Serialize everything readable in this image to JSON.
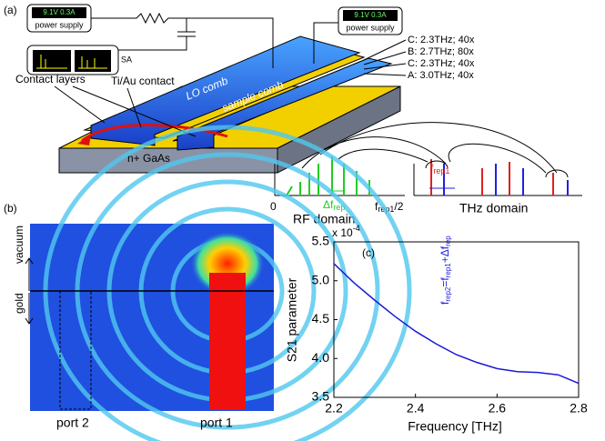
{
  "panel_a": {
    "label": "(a)",
    "supply_left": {
      "display": "9.1V 0.3A",
      "name": "power supply"
    },
    "sa": "SA",
    "supply_right": {
      "display": "9.1V 0.3A",
      "name": "power supply"
    },
    "layers": [
      "C: 2.3THz; 40x",
      "B: 2.7THz; 80x",
      "C: 2.3THz; 40x",
      "A: 3.0THz; 40x"
    ],
    "contact_layers": "Contact layers",
    "contact": "Ti/Au contact",
    "lo_comb": "LO comb",
    "sample_comb": "sample comb",
    "substrate": "n+ GaAs",
    "rf": {
      "zero": "0",
      "delta": "Δf",
      "delta_sub": "rep",
      "half": "f",
      "half_sub": "rep1",
      "half_end": "/2",
      "domain": "RF domain"
    },
    "thz": {
      "frep": "f",
      "frep_sub": "rep1",
      "domain": "THz domain",
      "relation": [
        "f",
        "rep2",
        "=f",
        "rep1",
        "+Δf",
        "rep"
      ]
    }
  },
  "panel_b": {
    "label": "(b)",
    "vacuum": "vacuum",
    "gold": "gold",
    "port2": "port 2",
    "port1": "port 1"
  },
  "chart_data": {
    "type": "line",
    "label": "(c)",
    "xlabel": "Frequency [THz]",
    "ylabel": "S21 parameter",
    "multiplier": "x 10",
    "multiplier_exp": "-4",
    "x": [
      2.2,
      2.25,
      2.3,
      2.35,
      2.4,
      2.45,
      2.5,
      2.55,
      2.6,
      2.65,
      2.7,
      2.75,
      2.8
    ],
    "series": [
      {
        "color": "#1a1ad6",
        "values": [
          5.22,
          4.97,
          4.75,
          4.54,
          4.35,
          4.19,
          4.05,
          3.95,
          3.87,
          3.83,
          3.82,
          3.79,
          3.68
        ]
      }
    ],
    "xlim": [
      2.2,
      2.8
    ],
    "xticks": [
      2.2,
      2.4,
      2.6,
      2.8
    ],
    "ylim": [
      3.5,
      5.5
    ],
    "yticks": [
      3.5,
      {
        "value": 4.0,
        "label": "4.0"
      },
      4.5,
      {
        "value": 5.0,
        "label": "5.0"
      },
      5.5
    ]
  }
}
